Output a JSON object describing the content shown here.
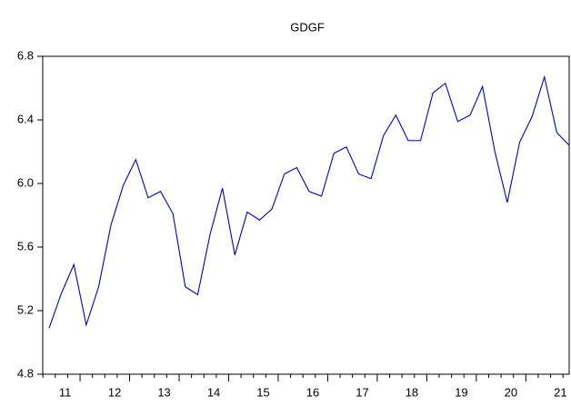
{
  "chart_data": {
    "type": "line",
    "title": "GDGF",
    "categories": [
      null,
      "11",
      null,
      null,
      null,
      "12",
      null,
      null,
      null,
      "13",
      null,
      null,
      null,
      "14",
      null,
      null,
      null,
      "15",
      null,
      null,
      null,
      "16",
      null,
      null,
      null,
      "17",
      null,
      null,
      null,
      "18",
      null,
      null,
      null,
      "19",
      null,
      null,
      null,
      "20",
      null,
      null,
      null,
      "21",
      null
    ],
    "series": [
      {
        "color": "#0000cc",
        "values": [
          5.09,
          5.31,
          5.49,
          5.11,
          5.35,
          5.74,
          5.99,
          6.15,
          5.91,
          5.95,
          5.81,
          5.35,
          5.3,
          5.68,
          5.97,
          5.55,
          5.82,
          5.77,
          5.84,
          6.06,
          6.1,
          5.95,
          5.92,
          6.19,
          6.23,
          6.06,
          6.03,
          6.3,
          6.43,
          6.27,
          6.27,
          6.57,
          6.63,
          6.39,
          6.43,
          6.61,
          6.2,
          5.88,
          6.26,
          6.42,
          6.67,
          6.32,
          6.24
        ]
      }
    ],
    "ylim": [
      4.8,
      6.8
    ],
    "yticks": [
      4.8,
      5.2,
      5.6,
      {
        "value": 6,
        "label": "6.0"
      },
      6.4,
      6.8
    ]
  }
}
